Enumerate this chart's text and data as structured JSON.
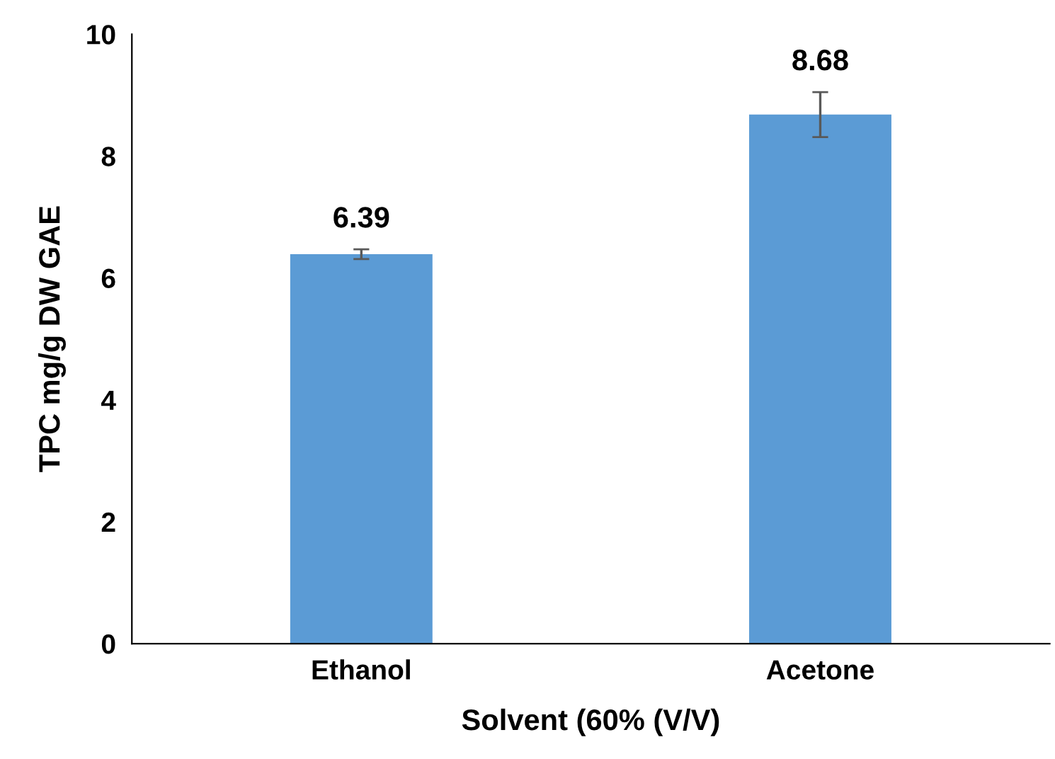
{
  "chart_data": {
    "type": "bar",
    "xlabel": "Solvent (60% (V/V)",
    "ylabel": "TPC mg/g DW GAE",
    "categories": [
      "Ethanol",
      "Acetone"
    ],
    "values": [
      6.39,
      8.68
    ],
    "color": "#5b9bd5",
    "errors": [
      0.08,
      0.37
    ],
    "data_labels": true,
    "ylim": [
      0,
      10
    ],
    "yticks": [
      0,
      2,
      4,
      6,
      8,
      10
    ],
    "grid": false
  }
}
